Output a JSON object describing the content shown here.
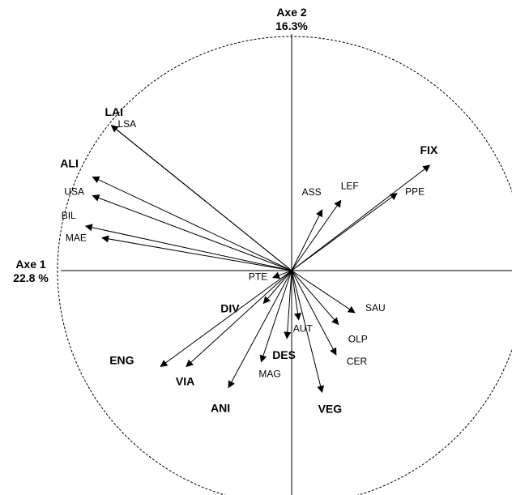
{
  "axes": {
    "axis1": {
      "name": "Axe 1",
      "inertia": "22.8 %"
    },
    "axis2": {
      "name": "Axe 2",
      "inertia": "16.3%"
    }
  },
  "chart_data": {
    "type": "scatter",
    "description_kind": "correlation-circle",
    "xlim": [
      -1,
      1
    ],
    "ylim": [
      -1,
      1
    ],
    "circle_style": "dashed",
    "variables": [
      {
        "id": "fix",
        "label": "FIX",
        "bold": true,
        "x": 0.59,
        "y": 0.45
      },
      {
        "id": "ppe",
        "label": "PPE",
        "bold": false,
        "x": 0.45,
        "y": 0.33
      },
      {
        "id": "lef",
        "label": "LEF",
        "bold": false,
        "x": 0.21,
        "y": 0.3
      },
      {
        "id": "ass",
        "label": "ASS",
        "bold": false,
        "x": 0.13,
        "y": 0.26
      },
      {
        "id": "lai",
        "label": "LAI",
        "bold": true,
        "x": -0.77,
        "y": 0.62
      },
      {
        "id": "lsa",
        "label": "LSA",
        "bold": false,
        "x": -0.77,
        "y": 0.62
      },
      {
        "id": "ali",
        "label": "ALI",
        "bold": true,
        "x": -0.85,
        "y": 0.4
      },
      {
        "id": "usa",
        "label": "USA",
        "bold": false,
        "x": -0.85,
        "y": 0.32
      },
      {
        "id": "bil",
        "label": "BIL",
        "bold": false,
        "x": -0.88,
        "y": 0.19
      },
      {
        "id": "mae",
        "label": "MAE",
        "bold": false,
        "x": -0.81,
        "y": 0.14
      },
      {
        "id": "pte",
        "label": "PTE",
        "bold": false,
        "x": -0.08,
        "y": -0.03
      },
      {
        "id": "div",
        "label": "DIV",
        "bold": true,
        "x": -0.12,
        "y": -0.14
      },
      {
        "id": "eng",
        "label": "ENG",
        "bold": true,
        "x": -0.56,
        "y": -0.41
      },
      {
        "id": "via",
        "label": "VIA",
        "bold": true,
        "x": -0.45,
        "y": -0.41
      },
      {
        "id": "ani",
        "label": "ANI",
        "bold": true,
        "x": -0.27,
        "y": -0.5
      },
      {
        "id": "mag",
        "label": "MAG",
        "bold": false,
        "x": -0.13,
        "y": -0.39
      },
      {
        "id": "des",
        "label": "DES",
        "bold": true,
        "x": -0.02,
        "y": -0.29
      },
      {
        "id": "aut",
        "label": "AUT",
        "bold": false,
        "x": 0.03,
        "y": -0.21
      },
      {
        "id": "veg",
        "label": "VEG",
        "bold": true,
        "x": 0.13,
        "y": -0.52
      },
      {
        "id": "cer",
        "label": "CER",
        "bold": false,
        "x": 0.19,
        "y": -0.36
      },
      {
        "id": "olp",
        "label": "OLP",
        "bold": false,
        "x": 0.2,
        "y": -0.23
      },
      {
        "id": "sau",
        "label": "SAU",
        "bold": false,
        "x": 0.27,
        "y": -0.18
      }
    ]
  }
}
